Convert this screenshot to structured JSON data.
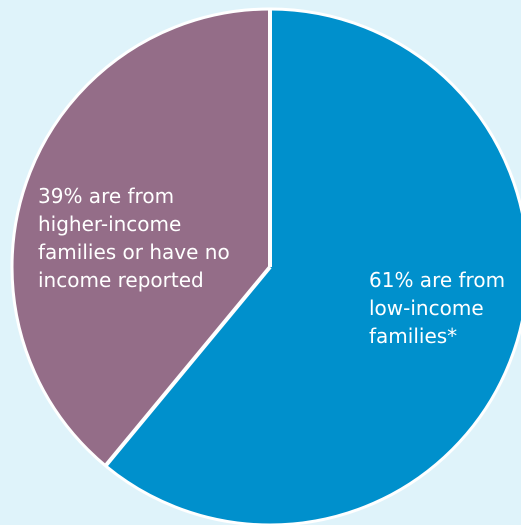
{
  "chart_data": {
    "type": "pie",
    "slices": [
      {
        "value": 61,
        "color": "#0090cc",
        "label_lines": [
          "61% are from",
          "low-income",
          "families*"
        ]
      },
      {
        "value": 39,
        "color": "#946d88",
        "label_lines": [
          "39% are from",
          "higher-income",
          "families or have no",
          "income reported"
        ]
      }
    ]
  }
}
